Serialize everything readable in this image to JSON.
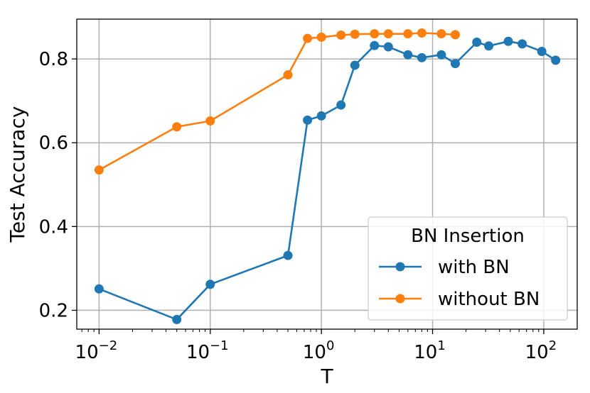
{
  "chart_data": {
    "type": "line",
    "xscale": "log",
    "xlabel": "T",
    "ylabel": "Test Accuracy",
    "xlim": [
      0.0063,
      200
    ],
    "ylim": [
      0.155,
      0.895
    ],
    "grid": true,
    "x_ticks": [
      {
        "value": 0.01,
        "base": "10",
        "exp": "−2"
      },
      {
        "value": 0.1,
        "base": "10",
        "exp": "−1"
      },
      {
        "value": 1,
        "base": "10",
        "exp": "0"
      },
      {
        "value": 10,
        "base": "10",
        "exp": "1"
      },
      {
        "value": 100,
        "base": "10",
        "exp": "2"
      }
    ],
    "y_ticks": [
      {
        "value": 0.2,
        "label": "0.2"
      },
      {
        "value": 0.4,
        "label": "0.4"
      },
      {
        "value": 0.6,
        "label": "0.6"
      },
      {
        "value": 0.8,
        "label": "0.8"
      }
    ],
    "legend": {
      "title": "BN Insertion",
      "placement": "lower-right"
    },
    "series": [
      {
        "name": "with BN",
        "color": "#1f77b4",
        "x": [
          0.01,
          0.05,
          0.1,
          0.5,
          0.75,
          1,
          1.5,
          2,
          3,
          4,
          6,
          8,
          12,
          16,
          25,
          32,
          48,
          64,
          96,
          128
        ],
        "y": [
          0.251,
          0.178,
          0.262,
          0.331,
          0.654,
          0.664,
          0.69,
          0.785,
          0.832,
          0.829,
          0.81,
          0.803,
          0.81,
          0.789,
          0.84,
          0.831,
          0.842,
          0.836,
          0.818,
          0.797
        ]
      },
      {
        "name": "without BN",
        "color": "#ff7f0e",
        "x": [
          0.01,
          0.05,
          0.1,
          0.5,
          0.75,
          1,
          1.5,
          2,
          3,
          4,
          6,
          8,
          12,
          16
        ],
        "y": [
          0.535,
          0.638,
          0.652,
          0.762,
          0.849,
          0.852,
          0.857,
          0.859,
          0.86,
          0.86,
          0.86,
          0.862,
          0.86,
          0.858
        ]
      }
    ]
  }
}
